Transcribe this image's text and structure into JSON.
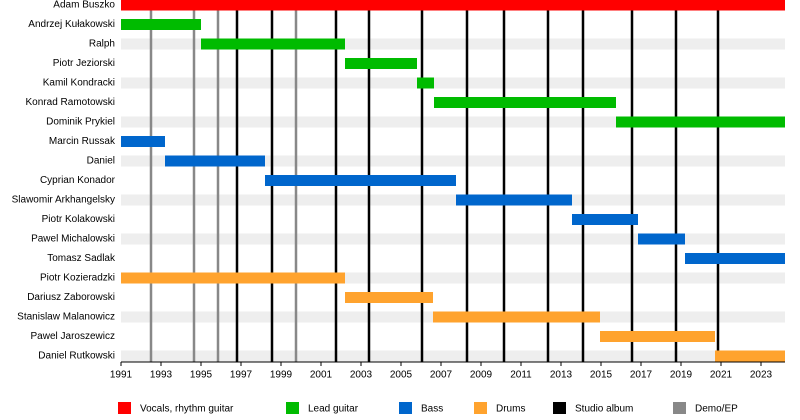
{
  "chart_data": {
    "type": "timeline",
    "xlim": [
      1991,
      2024.2
    ],
    "xticks": [
      1991,
      1993,
      1995,
      1997,
      1999,
      2001,
      2003,
      2005,
      2007,
      2009,
      2011,
      2013,
      2015,
      2017,
      2019,
      2021,
      2023
    ],
    "roles": [
      {
        "name": "Vocals, rhythm guitar",
        "color": "#ff0000"
      },
      {
        "name": "Lead guitar",
        "color": "#00bb00"
      },
      {
        "name": "Bass",
        "color": "#0066cc"
      },
      {
        "name": "Drums",
        "color": "#ffa32e"
      }
    ],
    "markers": [
      {
        "name": "Studio album",
        "color": "#000000",
        "years": [
          1996.8,
          1998.55,
          2001.75,
          2003.4,
          2006.05,
          2008.3,
          2010.15,
          2012.35,
          2014.1,
          2016.55,
          2018.75,
          2020.85
        ]
      },
      {
        "name": "Demo/EP",
        "color": "#888888",
        "years": [
          1992.5,
          1994.65,
          1995.85,
          1999.75
        ]
      }
    ],
    "members": [
      {
        "name": "Adam Buszko",
        "role": 0,
        "start": 1991,
        "end": 2024.2
      },
      {
        "name": "Andrzej Kułakowski",
        "role": 1,
        "start": 1991,
        "end": 1995
      },
      {
        "name": "Ralph",
        "role": 1,
        "start": 1995,
        "end": 2002.2
      },
      {
        "name": "Piotr Jeziorski",
        "role": 1,
        "start": 2002.2,
        "end": 2005.8
      },
      {
        "name": "Kamil Kondracki",
        "role": 1,
        "start": 2005.8,
        "end": 2006.65
      },
      {
        "name": "Konrad Ramotowski",
        "role": 1,
        "start": 2006.65,
        "end": 2015.75
      },
      {
        "name": "Dominik Prykiel",
        "role": 1,
        "start": 2015.75,
        "end": 2024.2
      },
      {
        "name": "Marcin Russak",
        "role": 2,
        "start": 1991,
        "end": 1993.2
      },
      {
        "name": "Daniel",
        "role": 2,
        "start": 1993.2,
        "end": 1998.2
      },
      {
        "name": "Cyprian Konador",
        "role": 2,
        "start": 1998.2,
        "end": 2007.75
      },
      {
        "name": "Slawomir Arkhangelsky",
        "role": 2,
        "start": 2007.75,
        "end": 2013.55
      },
      {
        "name": "Piotr Kolakowski",
        "role": 2,
        "start": 2013.55,
        "end": 2016.85
      },
      {
        "name": "Pawel Michalowski",
        "role": 2,
        "start": 2016.85,
        "end": 2019.2
      },
      {
        "name": "Tomasz Sadlak",
        "role": 2,
        "start": 2019.2,
        "end": 2024.2
      },
      {
        "name": "Piotr Kozieradzki",
        "role": 3,
        "start": 1991,
        "end": 2002.2
      },
      {
        "name": "Dariusz Zaborowski",
        "role": 3,
        "start": 2002.2,
        "end": 2006.6
      },
      {
        "name": "Stanislaw Malanowicz",
        "role": 3,
        "start": 2006.6,
        "end": 2014.95
      },
      {
        "name": "Pawel Jaroszewicz",
        "role": 3,
        "start": 2014.95,
        "end": 2020.7
      },
      {
        "name": "Daniel Rutkowski",
        "role": 3,
        "start": 2020.7,
        "end": 2024.2
      }
    ]
  }
}
